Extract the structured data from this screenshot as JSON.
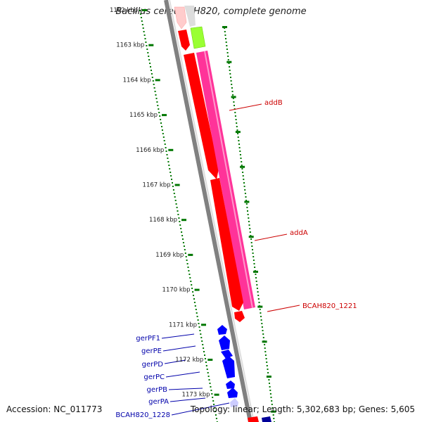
{
  "title": "Bacillus cereus AH820, complete genome",
  "footer": {
    "accession": "Accession: NC_011773",
    "summary": "Topology: linear; Length: 5,302,683 bp; Genes: 5,605"
  },
  "kbp_labels": [
    "1162 kbp",
    "1163 kbp",
    "1164 kbp",
    "1165 kbp",
    "1166 kbp",
    "1167 kbp",
    "1168 kbp",
    "1169 kbp",
    "1170 kbp",
    "1171 kbp",
    "1172 kbp",
    "1173 kbp"
  ],
  "genes_right": [
    {
      "label": "addB",
      "color": "#cc0000"
    },
    {
      "label": "addA",
      "color": "#cc0000"
    },
    {
      "label": "BCAH820_1221",
      "color": "#cc0000"
    }
  ],
  "genes_left": [
    {
      "label": "gerPF1",
      "color": "#0000aa"
    },
    {
      "label": "gerPE",
      "color": "#0000aa"
    },
    {
      "label": "gerPD",
      "color": "#0000aa"
    },
    {
      "label": "gerPC",
      "color": "#0000aa"
    },
    {
      "label": "gerPB",
      "color": "#0000aa"
    },
    {
      "label": "gerPA",
      "color": "#0000aa"
    },
    {
      "label": "BCAH820_1228",
      "color": "#0000aa"
    }
  ],
  "colors": {
    "backbone": "#808080",
    "tick": "#007700",
    "gene_red": "#ff0000",
    "gene_pink": "#ff3399",
    "gene_green": "#99ff33",
    "gene_blue": "#0000ff"
  }
}
